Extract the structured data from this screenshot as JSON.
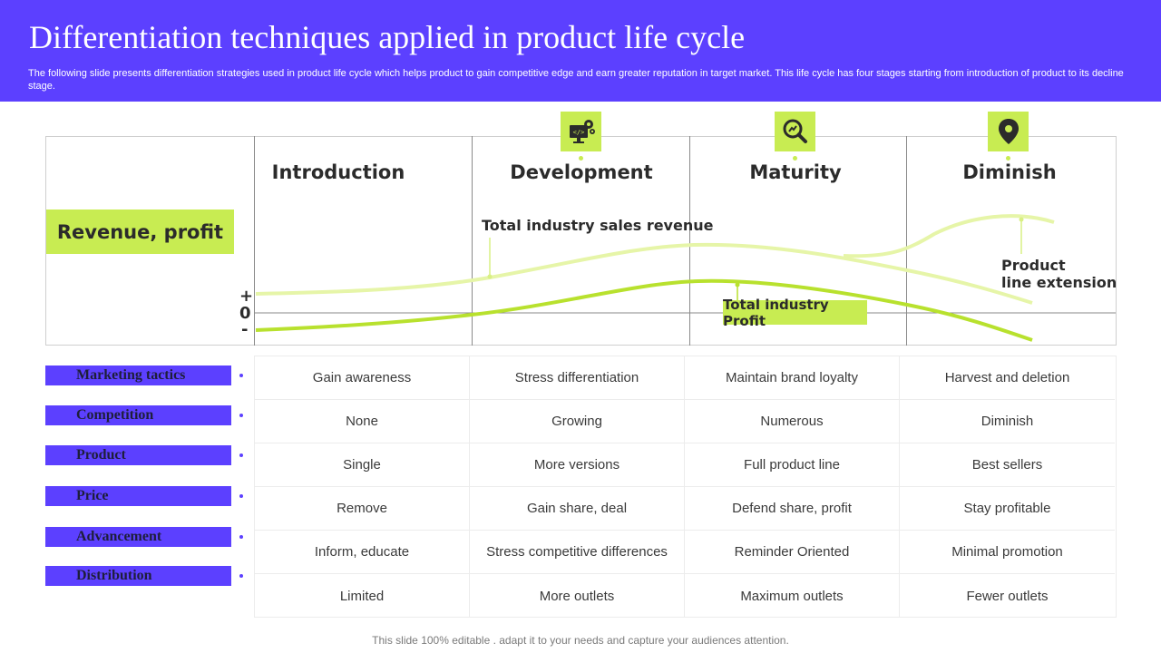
{
  "header": {
    "title": "Differentiation techniques applied in product life cycle",
    "subtitle": "The following slide presents differentiation strategies used in product life cycle which helps product to gain competitive edge and earn greater reputation in target market. This life cycle has four stages starting from introduction of product to its decline stage."
  },
  "chart": {
    "y_label": "Revenue, profit",
    "axis_plus": "+",
    "axis_zero": "0",
    "axis_minus": "-",
    "stages": [
      "Introduction",
      "Development",
      "Maturity",
      "Diminish"
    ],
    "stage_icons": [
      "",
      "developer-computer-gear-icon",
      "magnifier-chart-icon",
      "location-pin-icon",
      "location-pin-icon"
    ],
    "annotations": {
      "sales_revenue": "Total industry sales revenue",
      "profit": "Total industry Profit",
      "extension_line1": "Product",
      "extension_line2": "line extension"
    },
    "colors": {
      "revenue_curve": "#e6f5a8",
      "profit_curve": "#b8e12e",
      "accent_green": "#c8ec52",
      "accent_purple": "#5c40ff"
    }
  },
  "table": {
    "rows": [
      {
        "label": "Marketing tactics",
        "cells": [
          "Gain awareness",
          "Stress differentiation",
          "Maintain brand loyalty",
          "Harvest and deletion"
        ]
      },
      {
        "label": "Competition",
        "cells": [
          "None",
          "Growing",
          "Numerous",
          "Diminish"
        ]
      },
      {
        "label": "Product",
        "cells": [
          "Single",
          "More versions",
          "Full product line",
          "Best sellers"
        ]
      },
      {
        "label": "Price",
        "cells": [
          "Remove",
          "Gain share, deal",
          "Defend share, profit",
          "Stay profitable"
        ]
      },
      {
        "label": "Advancement",
        "cells": [
          "Inform, educate",
          "Stress competitive differences",
          "Reminder Oriented",
          "Minimal promotion"
        ]
      },
      {
        "label": "Distribution",
        "cells": [
          "Limited",
          "More outlets",
          "Maximum outlets",
          "Fewer outlets"
        ]
      }
    ]
  },
  "footer": {
    "text": "This slide 100% editable . adapt it to your needs and capture your audiences attention."
  }
}
